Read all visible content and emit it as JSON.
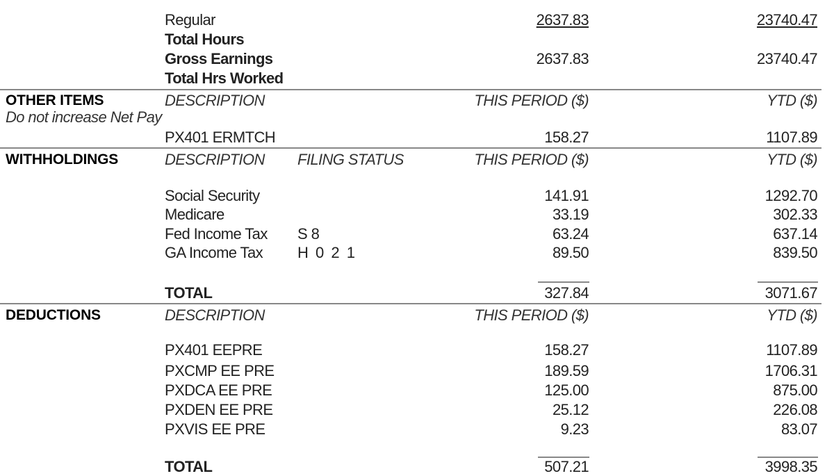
{
  "earnings": {
    "rows": [
      {
        "label": "Regular",
        "this_period": "2637.83",
        "ytd": "23740.47"
      },
      {
        "label": "Total Hours"
      },
      {
        "label": "Gross Earnings",
        "this_period": "2637.83",
        "ytd": "23740.47"
      },
      {
        "label": "Total Hrs Worked"
      }
    ]
  },
  "other_items": {
    "title": "OTHER ITEMS",
    "note": "Do not increase Net Pay",
    "col_description": "DESCRIPTION",
    "col_this_period": "THIS PERIOD ($)",
    "col_ytd": "YTD ($)",
    "rows": [
      {
        "description": "PX401 ERMTCH",
        "this_period": "158.27",
        "ytd": "1107.89"
      }
    ]
  },
  "withholdings": {
    "title": "WITHHOLDINGS",
    "col_description": "DESCRIPTION",
    "col_filing_status": "FILING STATUS",
    "col_this_period": "THIS PERIOD ($)",
    "col_ytd": "YTD ($)",
    "rows": [
      {
        "description": "Social Security",
        "filing_status": "",
        "this_period": "141.91",
        "ytd": "1292.70"
      },
      {
        "description": "Medicare",
        "filing_status": "",
        "this_period": "33.19",
        "ytd": "302.33"
      },
      {
        "description": "Fed Income Tax",
        "filing_status": "S 8",
        "this_period": "63.24",
        "ytd": "637.14"
      },
      {
        "description": "GA Income Tax",
        "filing_status": "H 0 2 1",
        "this_period": "89.50",
        "ytd": "839.50"
      }
    ],
    "total_label": "TOTAL",
    "total_this_period": "327.84",
    "total_ytd": "3071.67"
  },
  "deductions": {
    "title": "DEDUCTIONS",
    "col_description": "DESCRIPTION",
    "col_this_period": "THIS PERIOD ($)",
    "col_ytd": "YTD ($)",
    "rows": [
      {
        "description": "PX401 EEPRE",
        "this_period": "158.27",
        "ytd": "1107.89"
      },
      {
        "description": "PXCMP EE PRE",
        "this_period": "189.59",
        "ytd": "1706.31"
      },
      {
        "description": "PXDCA EE PRE",
        "this_period": "125.00",
        "ytd": "875.00"
      },
      {
        "description": "PXDEN EE PRE",
        "this_period": "25.12",
        "ytd": "226.08"
      },
      {
        "description": "PXVIS EE PRE",
        "this_period": "9.23",
        "ytd": "83.07"
      }
    ],
    "total_label": "TOTAL",
    "total_this_period": "507.21",
    "total_ytd": "3998.35"
  }
}
